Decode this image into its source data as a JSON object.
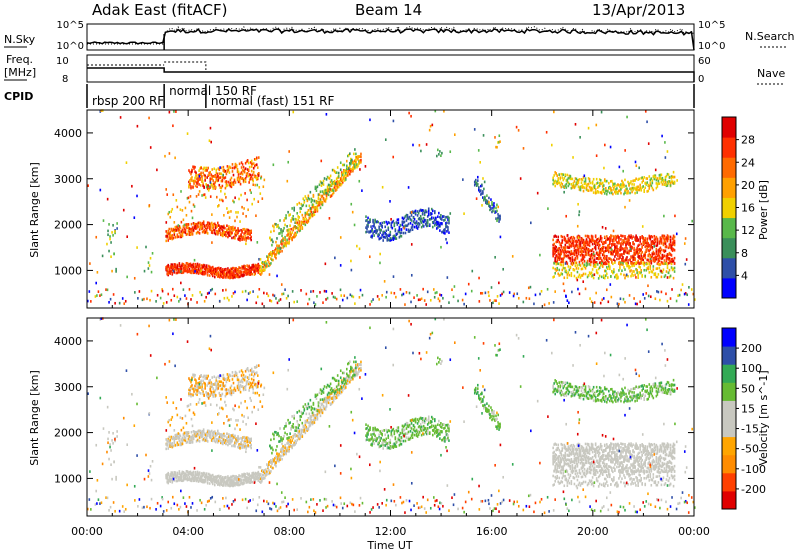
{
  "header": {
    "station": "Adak East (fitACF)",
    "beam": "Beam 14",
    "date": "13/Apr/2013"
  },
  "side_labels": {
    "nsky": "N.Sky",
    "freq_line1": "Freq.",
    "freq_line2": "[MHz]",
    "cpid": "CPID",
    "nsearch": "N.Search",
    "nave": "Nave"
  },
  "cpid_blocks": [
    {
      "label": "rbsp 200 RF",
      "start_h": 0.0,
      "end_h": 3.05
    },
    {
      "label": "normal 150 RF",
      "start_h": 3.05,
      "end_h": 4.7
    },
    {
      "label": "normal (fast) 151 RF",
      "start_h": 4.7,
      "end_h": 24.0
    }
  ],
  "colors": {
    "power": [
      "#0000ff",
      "#2e4fa8",
      "#3a8f5a",
      "#58b84a",
      "#f0d000",
      "#ffa000",
      "#ff6a00",
      "#ff3000",
      "#e00000"
    ],
    "velocity": [
      "#e00000",
      "#ff4000",
      "#ff8c00",
      "#ffa500",
      "#c8c8c0",
      "#c8c8c0",
      "#66bb33",
      "#33aa55",
      "#2e4fa8",
      "#0000ff"
    ],
    "velocity_neutral": "#c8c8c0"
  },
  "chart_data": [
    {
      "type": "line",
      "name": "noise",
      "series": [
        {
          "name": "N.Sky"
        },
        {
          "name": "N.Search"
        }
      ],
      "y_ticks_left": [
        "10^5",
        "10^0"
      ],
      "y_ticks_right": [
        "10^5",
        "10^0"
      ]
    },
    {
      "type": "line",
      "name": "frequency",
      "series": [
        {
          "name": "Freq. [MHz]",
          "values_by_mode": [
            10,
            9,
            8
          ]
        },
        {
          "name": "Nave"
        }
      ],
      "y_ticks_left": [
        "10",
        "8"
      ],
      "y_ticks_right": [
        "60",
        "0"
      ]
    },
    {
      "type": "heatmap",
      "name": "power",
      "ylabel": "Slant Range [km]",
      "xlabel": "",
      "x_range_h": [
        0,
        24
      ],
      "y_range_km": [
        180,
        4500
      ],
      "y_ticks": [
        "1000",
        "2000",
        "3000",
        "4000"
      ],
      "colorbar_label": "Power [dB]",
      "colorbar_ticks": [
        "28",
        "24",
        "20",
        "16",
        "12",
        "8",
        "4"
      ],
      "colorbar_range": [
        0,
        32
      ]
    },
    {
      "type": "heatmap",
      "name": "velocity",
      "ylabel": "Slant Range [km]",
      "xlabel": "Time UT",
      "x_range_h": [
        0,
        24
      ],
      "y_range_km": [
        180,
        4500
      ],
      "y_ticks": [
        "1000",
        "2000",
        "3000",
        "4000"
      ],
      "x_ticks": [
        "00:00",
        "04:00",
        "08:00",
        "12:00",
        "16:00",
        "20:00",
        "00:00"
      ],
      "colorbar_label": "Velocity [m s^-1]",
      "colorbar_ticks": [
        "200",
        "100",
        "50",
        "15",
        "-15",
        "-50",
        "-100",
        "-200"
      ]
    }
  ]
}
